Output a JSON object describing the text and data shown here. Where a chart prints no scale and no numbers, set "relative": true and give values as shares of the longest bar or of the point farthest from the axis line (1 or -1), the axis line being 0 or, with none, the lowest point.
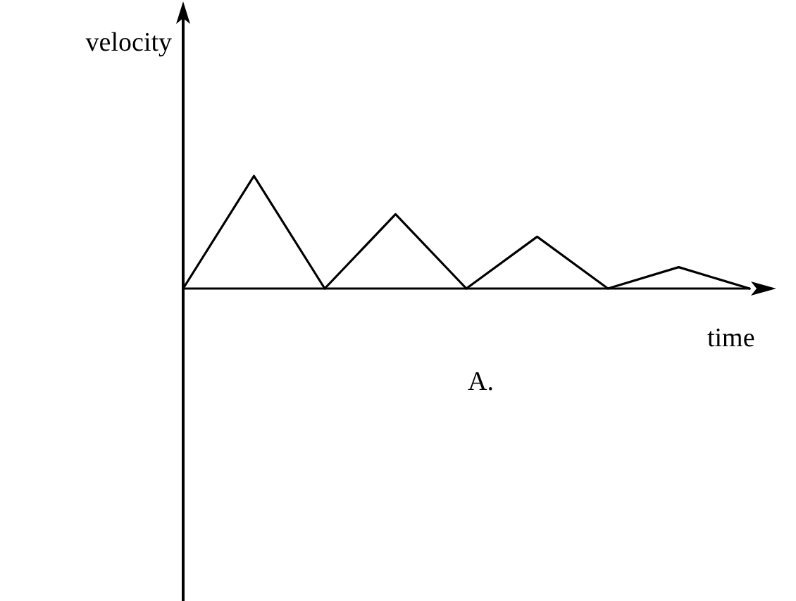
{
  "chart_data": {
    "type": "line",
    "relative": true,
    "xlabel": "time",
    "ylabel": "velocity",
    "annotations": [
      "A."
    ],
    "categories": [
      null,
      null,
      null,
      null,
      null,
      null,
      null,
      null,
      null
    ],
    "series": [
      {
        "color": "#000000",
        "values": [
          0,
          1,
          0,
          0.66,
          0,
          0.46,
          0,
          0.19,
          0
        ]
      }
    ],
    "marker": "none",
    "line_style": "solid",
    "grid": false,
    "tick_labels": false
  }
}
